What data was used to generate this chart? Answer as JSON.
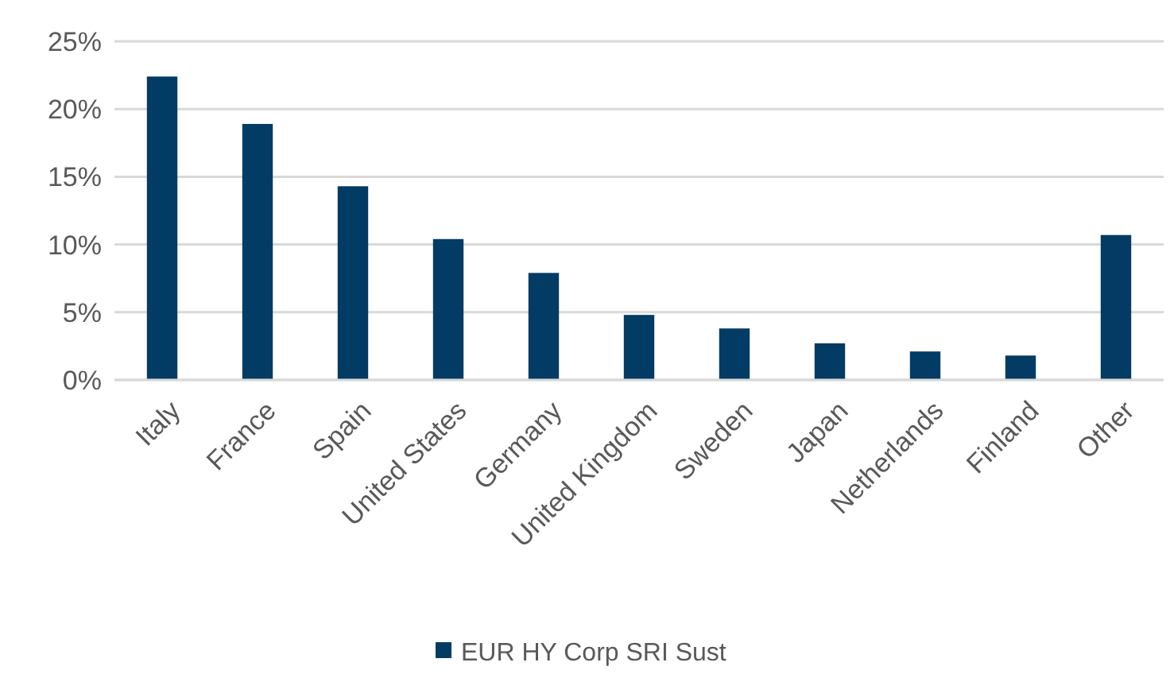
{
  "chart_data": {
    "type": "bar",
    "categories": [
      "Italy",
      "France",
      "Spain",
      "United States",
      "Germany",
      "United Kingdom",
      "Sweden",
      "Japan",
      "Netherlands",
      "Finland",
      "Other"
    ],
    "series": [
      {
        "name": "EUR HY Corp SRI Sust",
        "color": "#023b64",
        "values": [
          22.4,
          18.9,
          14.3,
          10.4,
          7.9,
          4.8,
          3.8,
          2.7,
          2.1,
          1.8,
          10.7
        ]
      }
    ],
    "ylim": [
      0,
      25
    ],
    "yticks": [
      {
        "value": 0,
        "label": "0%"
      },
      {
        "value": 5,
        "label": "5%"
      },
      {
        "value": 10,
        "label": "10%"
      },
      {
        "value": 15,
        "label": "15%"
      },
      {
        "value": 20,
        "label": "20%"
      },
      {
        "value": 25,
        "label": "25%"
      }
    ],
    "grid": "y",
    "legend": "bottom"
  }
}
